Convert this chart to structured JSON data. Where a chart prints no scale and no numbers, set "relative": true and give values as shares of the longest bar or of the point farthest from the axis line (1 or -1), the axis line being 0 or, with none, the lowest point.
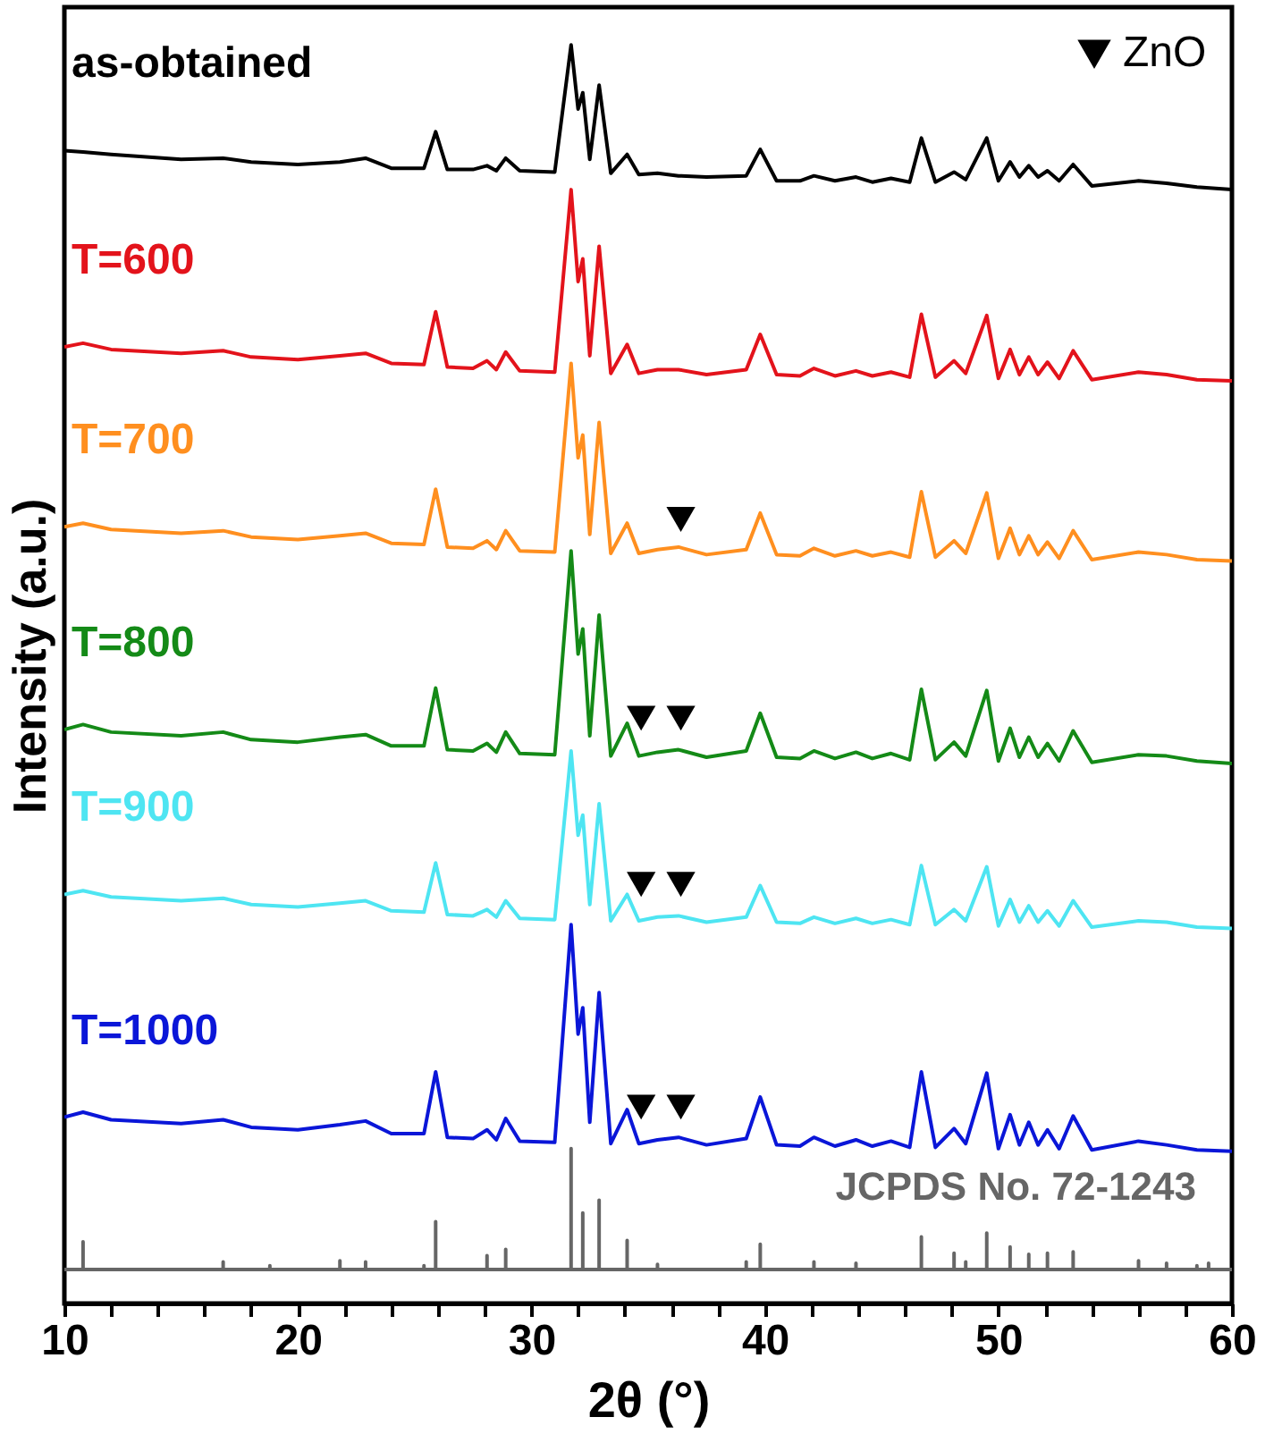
{
  "chart_data": {
    "type": "line",
    "relative": true,
    "xlabel": "2θ (°)",
    "ylabel": "Intensity (a.u.)",
    "x": [
      10,
      10.8,
      12,
      15,
      16.8,
      18,
      20,
      21.8,
      22.9,
      24,
      25.4,
      25.9,
      26.4,
      27.5,
      28.1,
      28.5,
      28.9,
      29.5,
      31,
      31.7,
      32.0,
      32.2,
      32.5,
      32.9,
      33.4,
      34.1,
      34.6,
      35.4,
      36.3,
      37.5,
      39.2,
      39.8,
      40.5,
      41.5,
      42.1,
      43,
      43.9,
      44.6,
      45.4,
      46.2,
      46.7,
      47.3,
      48.1,
      48.6,
      49.5,
      50.0,
      50.5,
      50.9,
      51.3,
      51.7,
      52.1,
      52.6,
      53.2,
      54,
      56,
      57.2,
      58.5,
      60
    ],
    "xlim": [
      10,
      60
    ],
    "xticks": [
      10,
      {
        "value": 12,
        "label": null
      },
      {
        "value": 14,
        "label": null
      },
      {
        "value": 16,
        "label": null
      },
      {
        "value": 18,
        "label": null
      },
      20,
      {
        "value": 22,
        "label": null
      },
      {
        "value": 24,
        "label": null
      },
      {
        "value": 26,
        "label": null
      },
      {
        "value": 28,
        "label": null
      },
      30,
      {
        "value": 32,
        "label": null
      },
      {
        "value": 34,
        "label": null
      },
      {
        "value": 36,
        "label": null
      },
      {
        "value": 38,
        "label": null
      },
      40,
      {
        "value": 42,
        "label": null
      },
      {
        "value": 44,
        "label": null
      },
      {
        "value": 46,
        "label": null
      },
      {
        "value": 48,
        "label": null
      },
      50,
      {
        "value": 52,
        "label": null
      },
      {
        "value": 54,
        "label": null
      },
      {
        "value": 56,
        "label": null
      },
      {
        "value": 58,
        "label": null
      },
      60
    ],
    "tick_labels": "x",
    "line_style": "solid",
    "legend": "top right",
    "series": [
      {
        "name": "as-obtained",
        "color": "#000000",
        "values": [
          0.916,
          0.915,
          0.913,
          0.909,
          0.91,
          0.907,
          0.905,
          0.907,
          0.91,
          0.902,
          0.902,
          0.931,
          0.901,
          0.901,
          0.904,
          0.9,
          0.91,
          0.9,
          0.899,
          1.0,
          0.949,
          0.962,
          0.909,
          0.968,
          0.898,
          0.913,
          0.897,
          0.898,
          0.896,
          0.895,
          0.896,
          0.917,
          0.892,
          0.892,
          0.896,
          0.892,
          0.895,
          0.891,
          0.894,
          0.891,
          0.926,
          0.891,
          0.899,
          0.893,
          0.926,
          0.892,
          0.907,
          0.895,
          0.904,
          0.895,
          0.9,
          0.892,
          0.905,
          0.888,
          0.892,
          0.89,
          0.887,
          0.885
        ]
      },
      {
        "name": "T=600",
        "color": "#e3131b",
        "values": [
          0.76,
          0.763,
          0.758,
          0.755,
          0.757,
          0.752,
          0.75,
          0.753,
          0.755,
          0.747,
          0.746,
          0.788,
          0.744,
          0.743,
          0.749,
          0.742,
          0.756,
          0.741,
          0.74,
          0.885,
          0.812,
          0.83,
          0.753,
          0.84,
          0.739,
          0.762,
          0.739,
          0.742,
          0.742,
          0.738,
          0.742,
          0.77,
          0.738,
          0.737,
          0.743,
          0.737,
          0.741,
          0.737,
          0.74,
          0.736,
          0.786,
          0.736,
          0.749,
          0.739,
          0.785,
          0.735,
          0.758,
          0.738,
          0.752,
          0.738,
          0.748,
          0.735,
          0.757,
          0.734,
          0.74,
          0.738,
          0.734,
          0.733
        ]
      },
      {
        "name": "T=700",
        "color": "#ff8f1f",
        "values": [
          0.617,
          0.62,
          0.615,
          0.612,
          0.614,
          0.609,
          0.607,
          0.61,
          0.612,
          0.604,
          0.603,
          0.647,
          0.601,
          0.6,
          0.606,
          0.599,
          0.614,
          0.598,
          0.597,
          0.747,
          0.672,
          0.69,
          0.611,
          0.7,
          0.596,
          0.62,
          0.596,
          0.599,
          0.601,
          0.595,
          0.599,
          0.628,
          0.595,
          0.594,
          0.6,
          0.594,
          0.598,
          0.594,
          0.597,
          0.593,
          0.645,
          0.593,
          0.606,
          0.596,
          0.644,
          0.592,
          0.616,
          0.595,
          0.61,
          0.595,
          0.605,
          0.592,
          0.614,
          0.591,
          0.597,
          0.595,
          0.591,
          0.59
        ]
      },
      {
        "name": "T=800",
        "color": "#148a17",
        "values": [
          0.456,
          0.46,
          0.454,
          0.451,
          0.454,
          0.448,
          0.446,
          0.45,
          0.452,
          0.443,
          0.443,
          0.489,
          0.44,
          0.439,
          0.445,
          0.438,
          0.454,
          0.437,
          0.436,
          0.598,
          0.516,
          0.536,
          0.451,
          0.547,
          0.435,
          0.461,
          0.435,
          0.438,
          0.44,
          0.434,
          0.439,
          0.469,
          0.434,
          0.433,
          0.439,
          0.433,
          0.438,
          0.433,
          0.437,
          0.432,
          0.488,
          0.432,
          0.446,
          0.435,
          0.487,
          0.431,
          0.457,
          0.434,
          0.45,
          0.434,
          0.445,
          0.431,
          0.455,
          0.43,
          0.436,
          0.435,
          0.431,
          0.429
        ]
      },
      {
        "name": "T=900",
        "color": "#4ee5f2",
        "values": [
          0.325,
          0.328,
          0.323,
          0.32,
          0.322,
          0.317,
          0.315,
          0.318,
          0.32,
          0.312,
          0.311,
          0.35,
          0.309,
          0.308,
          0.313,
          0.307,
          0.32,
          0.306,
          0.305,
          0.439,
          0.372,
          0.388,
          0.317,
          0.397,
          0.304,
          0.325,
          0.304,
          0.307,
          0.308,
          0.303,
          0.307,
          0.332,
          0.303,
          0.302,
          0.307,
          0.302,
          0.306,
          0.302,
          0.305,
          0.301,
          0.348,
          0.301,
          0.313,
          0.304,
          0.347,
          0.3,
          0.321,
          0.303,
          0.316,
          0.303,
          0.312,
          0.3,
          0.32,
          0.299,
          0.304,
          0.303,
          0.299,
          0.298
        ]
      },
      {
        "name": "T=1000",
        "color": "#0a16d8",
        "values": [
          0.148,
          0.152,
          0.146,
          0.143,
          0.146,
          0.14,
          0.138,
          0.142,
          0.145,
          0.135,
          0.135,
          0.184,
          0.132,
          0.131,
          0.138,
          0.13,
          0.147,
          0.129,
          0.128,
          0.301,
          0.214,
          0.235,
          0.144,
          0.247,
          0.127,
          0.154,
          0.127,
          0.13,
          0.132,
          0.126,
          0.131,
          0.164,
          0.126,
          0.125,
          0.132,
          0.125,
          0.13,
          0.125,
          0.129,
          0.124,
          0.184,
          0.124,
          0.139,
          0.127,
          0.183,
          0.123,
          0.15,
          0.126,
          0.144,
          0.126,
          0.138,
          0.123,
          0.149,
          0.122,
          0.129,
          0.126,
          0.122,
          0.121
        ]
      },
      {
        "name": "JCPDS No. 72-1243",
        "color": "#666666",
        "x": [
          10,
          10.8,
          10.8,
          10.8,
          16.8,
          16.8,
          16.8,
          18.8,
          18.8,
          18.8,
          21.8,
          21.8,
          21.8,
          22.9,
          22.9,
          22.9,
          25.4,
          25.4,
          25.4,
          25.9,
          25.9,
          25.9,
          28.1,
          28.1,
          28.1,
          28.9,
          28.9,
          28.9,
          31.7,
          31.7,
          31.7,
          32.2,
          32.2,
          32.2,
          32.9,
          32.9,
          32.9,
          34.1,
          34.1,
          34.1,
          35.4,
          35.4,
          35.4,
          39.2,
          39.2,
          39.2,
          39.8,
          39.8,
          39.8,
          42.1,
          42.1,
          42.1,
          43.9,
          43.9,
          43.9,
          46.7,
          46.7,
          46.7,
          48.1,
          48.1,
          48.1,
          48.6,
          48.6,
          48.6,
          49.5,
          49.5,
          49.5,
          50.5,
          50.5,
          50.5,
          51.3,
          51.3,
          51.3,
          52.1,
          52.1,
          52.1,
          53.2,
          53.2,
          53.2,
          56.0,
          56.0,
          56.0,
          57.2,
          57.2,
          57.2,
          58.5,
          58.5,
          58.5,
          59.0,
          59.0,
          59.0,
          60
        ],
        "values": [
          0.027,
          0.027,
          0.049,
          0.027,
          0.027,
          0.033,
          0.027,
          0.027,
          0.03,
          0.027,
          0.027,
          0.034,
          0.027,
          0.027,
          0.033,
          0.027,
          0.027,
          0.03,
          0.027,
          0.027,
          0.065,
          0.027,
          0.027,
          0.038,
          0.027,
          0.027,
          0.043,
          0.027,
          0.027,
          0.123,
          0.027,
          0.027,
          0.072,
          0.027,
          0.027,
          0.082,
          0.027,
          0.027,
          0.05,
          0.027,
          0.027,
          0.031,
          0.027,
          0.027,
          0.033,
          0.027,
          0.027,
          0.047,
          0.027,
          0.027,
          0.033,
          0.027,
          0.027,
          0.032,
          0.027,
          0.027,
          0.053,
          0.027,
          0.027,
          0.04,
          0.027,
          0.027,
          0.033,
          0.027,
          0.027,
          0.056,
          0.027,
          0.027,
          0.045,
          0.027,
          0.027,
          0.039,
          0.027,
          0.027,
          0.04,
          0.027,
          0.027,
          0.041,
          0.027,
          0.027,
          0.034,
          0.027,
          0.027,
          0.032,
          0.027,
          0.027,
          0.03,
          0.027,
          0.027,
          0.032,
          0.027,
          0.027
        ]
      },
      {
        "name": "ZnO",
        "type": "scatter",
        "marker": "triangle",
        "color": "#000000",
        "x": [
          36.4,
          34.7,
          36.4,
          34.7,
          36.4,
          34.7,
          36.4
        ],
        "values": [
          0.623,
          0.465,
          0.465,
          0.333,
          0.333,
          0.156,
          0.156
        ]
      }
    ]
  }
}
